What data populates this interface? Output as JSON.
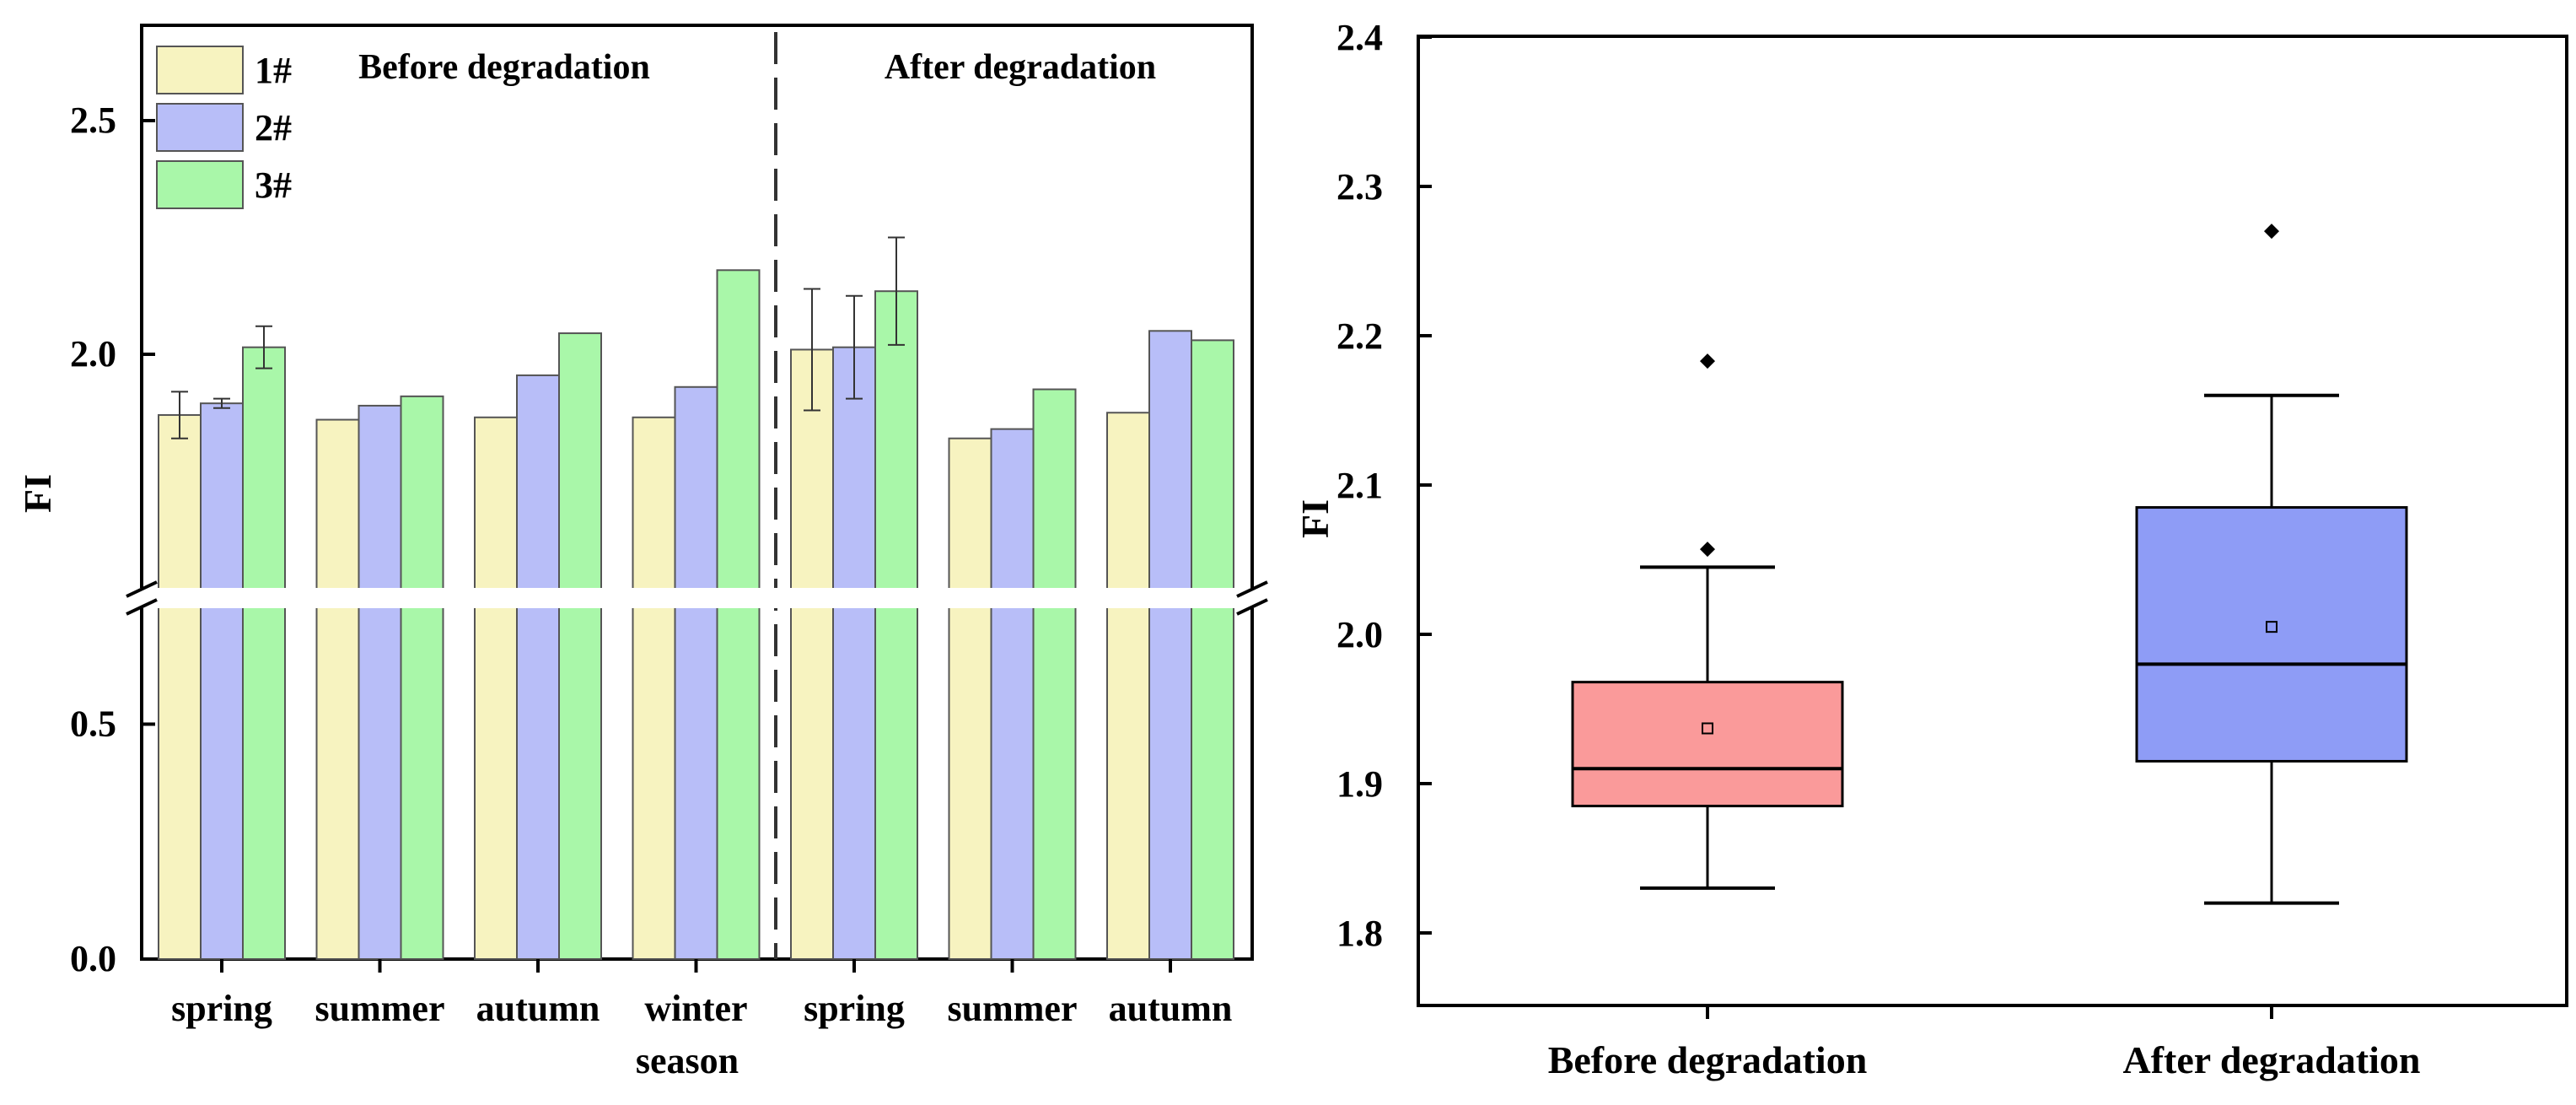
{
  "figure": {
    "colors": {
      "s1": "#f7f3c0",
      "s2": "#b8bef8",
      "s3": "#a9f7a9",
      "box_before": "#fa9a9a",
      "box_after": "#8e9cf6"
    }
  },
  "chart_data": [
    {
      "type": "bar",
      "ylabel": "FI",
      "broken_axis": {
        "lower": [
          0,
          0.8
        ],
        "upper": [
          1.6,
          2.7
        ]
      },
      "yticks": [
        {
          "value": 0.0,
          "label": "0.0"
        },
        {
          "value": 0.5,
          "label": "0.5"
        },
        {
          "value": 2.0,
          "label": "2.0"
        },
        {
          "value": 2.5,
          "label": "2.5"
        }
      ],
      "xlabel": "season",
      "categories": [
        "spring",
        "summer",
        "autumn",
        "winter",
        "spring",
        "summer",
        "autumn"
      ],
      "groups": [
        {
          "label": "Before degradation",
          "categories": [
            0,
            1,
            2,
            3
          ]
        },
        {
          "label": "After degradation",
          "categories": [
            4,
            5,
            6
          ]
        }
      ],
      "series": [
        {
          "name": "1#",
          "values": [
            1.87,
            1.86,
            1.865,
            1.865,
            2.01,
            1.82,
            1.875
          ],
          "errors": [
            0.05,
            null,
            null,
            null,
            0.13,
            null,
            null
          ]
        },
        {
          "name": "2#",
          "values": [
            1.895,
            1.89,
            1.955,
            1.93,
            2.015,
            1.84,
            2.05
          ],
          "errors": [
            0.01,
            null,
            null,
            null,
            0.11,
            null,
            null
          ]
        },
        {
          "name": "3#",
          "values": [
            2.015,
            1.91,
            2.045,
            2.18,
            2.135,
            1.925,
            2.03
          ],
          "errors": [
            0.045,
            null,
            null,
            null,
            0.115,
            null,
            null
          ]
        }
      ],
      "legend": "top-left"
    },
    {
      "type": "box",
      "ylabel": "FI",
      "ylim": [
        1.77,
        2.4
      ],
      "yticks": [
        "1.8",
        "1.9",
        "2.0",
        "2.1",
        "2.2",
        "2.3",
        "2.4"
      ],
      "categories": [
        "Before degradation",
        "After degradation"
      ],
      "boxes": [
        {
          "whisker_low": 1.83,
          "q1": 1.885,
          "median": 1.91,
          "q3": 1.968,
          "whisker_high": 2.045,
          "mean": 1.937,
          "outliers": [
            2.057,
            2.183
          ]
        },
        {
          "whisker_low": 1.82,
          "q1": 1.915,
          "median": 1.98,
          "q3": 2.085,
          "whisker_high": 2.16,
          "mean": 2.005,
          "outliers": [
            2.27
          ]
        }
      ]
    }
  ]
}
